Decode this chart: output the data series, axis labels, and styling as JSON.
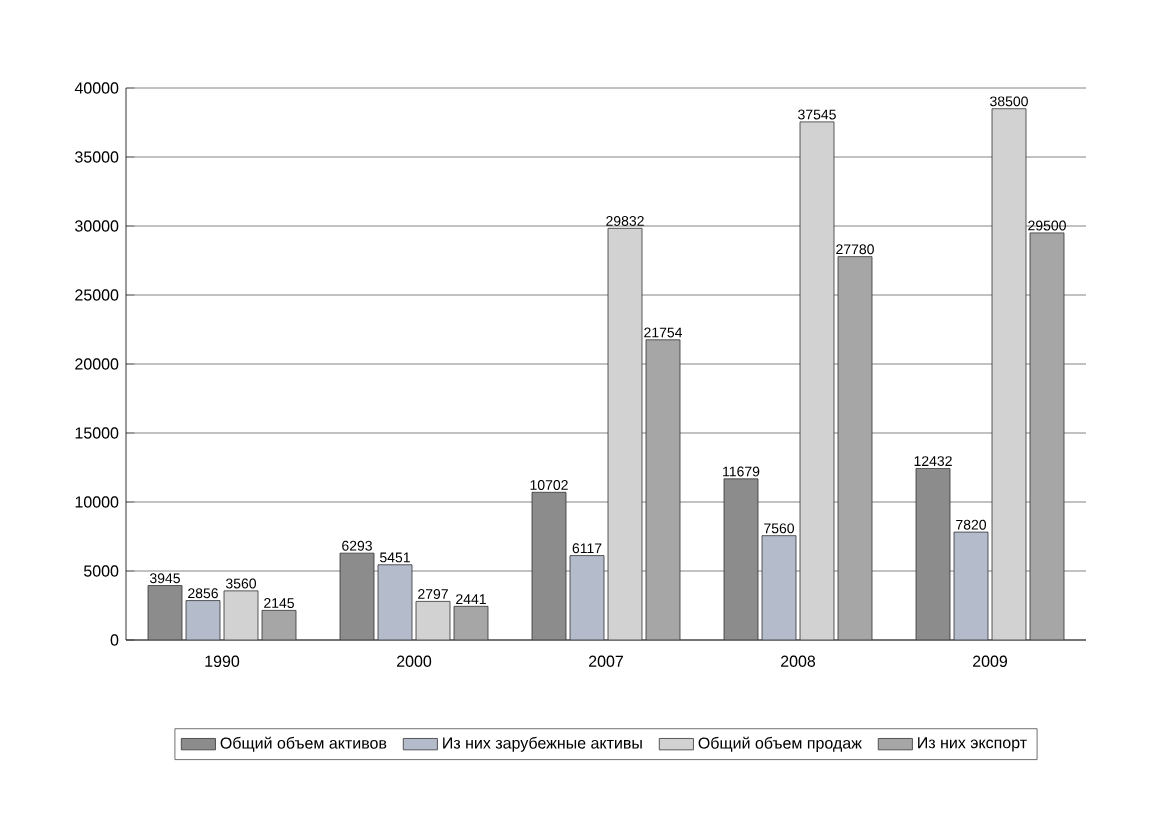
{
  "chart_data": {
    "type": "bar",
    "categories": [
      "1990",
      "2000",
      "2007",
      "2008",
      "2009"
    ],
    "series": [
      {
        "name": "Общий объем активов",
        "color": "#8c8c8c",
        "values": [
          3945,
          6293,
          10702,
          11679,
          12432
        ]
      },
      {
        "name": "Из них зарубежные активы",
        "color": "#b4bccc",
        "values": [
          2856,
          5451,
          6117,
          7560,
          7820
        ]
      },
      {
        "name": "Общий объем продаж",
        "color": "#d2d2d2",
        "values": [
          3560,
          2797,
          29832,
          37545,
          38500
        ]
      },
      {
        "name": "Из них экспорт",
        "color": "#a6a6a6",
        "values": [
          2145,
          2441,
          21754,
          27780,
          29500
        ]
      }
    ],
    "ylim": [
      0,
      40000
    ],
    "yticks": [
      0,
      5000,
      10000,
      15000,
      20000,
      25000,
      30000,
      35000,
      40000
    ],
    "grid": "y",
    "legend": "bottom",
    "data_labels": true
  }
}
